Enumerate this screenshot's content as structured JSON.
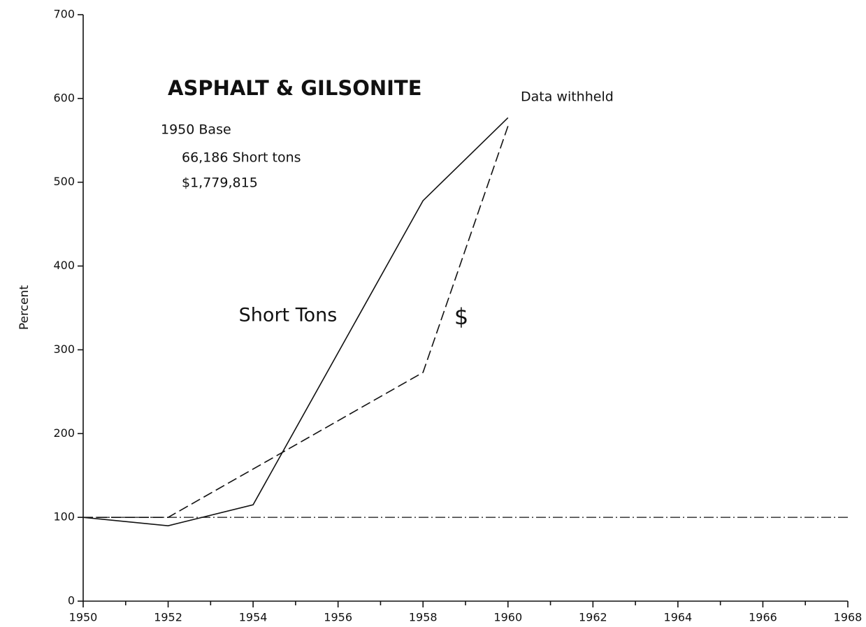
{
  "chart_data": {
    "type": "line",
    "title": "ASPHALT & GILSONITE",
    "annotations": [
      "1950 Base",
      "66,186 Short tons",
      "$1,779,815",
      "Data withheld"
    ],
    "ylabel": "Percent",
    "series": [
      {
        "name": "Short Tons",
        "color": "#111111",
        "dash": "solid",
        "x": [
          1950,
          1952,
          1954,
          1958,
          1960
        ],
        "values": [
          100,
          90,
          115,
          478,
          577
        ]
      },
      {
        "name": "$",
        "color": "#111111",
        "dash": "dashed",
        "x": [
          1950,
          1952,
          1958,
          1960
        ],
        "values": [
          100,
          100,
          273,
          567
        ]
      }
    ],
    "baseline": 100,
    "xlim": [
      1950,
      1968
    ],
    "xticks": [
      1950,
      1952,
      1954,
      1956,
      1958,
      1960,
      1962,
      1964,
      1966,
      1968
    ],
    "xminorticks": [
      1951,
      1953,
      1955,
      1957,
      1959,
      1961,
      1963,
      1965,
      1967
    ],
    "ylim": [
      0,
      700
    ],
    "yticks": [
      0,
      100,
      200,
      300,
      400,
      500,
      600,
      700
    ],
    "grid": false
  }
}
